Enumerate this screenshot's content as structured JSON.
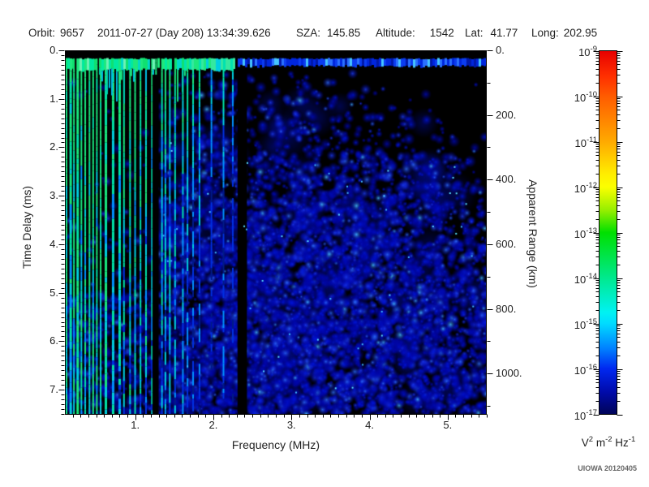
{
  "header": {
    "fields": [
      {
        "label": "Orbit:",
        "value": "9657"
      },
      {
        "label": "",
        "value": "2011-07-27 (Day 208) 13:34:39.626"
      },
      {
        "label": "SZA:",
        "value": "145.85"
      },
      {
        "label": "Altitude:",
        "value": "1542"
      },
      {
        "label": "Lat:",
        "value": "41.77"
      },
      {
        "label": "Long:",
        "value": "202.95"
      }
    ]
  },
  "chart_data": {
    "type": "heatmap",
    "description": "Radar sounder ionogram: received spectral density on a log color scale (1e-17 to 1e-9 V^2 m^-2 Hz^-1) versus sounding frequency (0.1-5.5 MHz, x) and echo time delay (0-7.5 ms, left y) / apparent range (0-1125 km, right y). Bright green vertical plasma-resonance stripes below ~1.8 MHz, a bright horizontal direct-signal band near 0.2-0.4 ms across all frequencies (green below ~2.3 MHz, blue above), diffuse blue noise echoes elsewhere that thin out toward the upper right, and black vertical gaps near 1.25 MHz and 2.37 MHz.",
    "x_axis": {
      "label": "Frequency (MHz)",
      "range_mhz": [
        0.1,
        5.5
      ],
      "major_tick_values": [
        1,
        2,
        3,
        4,
        5
      ],
      "major_tick_labels": [
        "1.",
        "2.",
        "3.",
        "4.",
        "5."
      ],
      "minor_tick_step_mhz": 0.1
    },
    "y_axis_left": {
      "label": "Time Delay (ms)",
      "range_ms": [
        0,
        7.5
      ],
      "major_tick_values": [
        0,
        1,
        2,
        3,
        4,
        5,
        6,
        7
      ],
      "major_tick_labels": [
        "0.",
        "1.",
        "2.",
        "3.",
        "4.",
        "5.",
        "6.",
        "7."
      ],
      "minor_tick_step_ms": 0.1
    },
    "y_axis_right": {
      "label": "Apparent Range (km)",
      "range_km": [
        0,
        1125
      ],
      "major_tick_values": [
        0,
        200,
        400,
        600,
        800,
        1000
      ],
      "major_tick_labels": [
        "0.",
        "200.",
        "400.",
        "600.",
        "800.",
        "1000."
      ],
      "minor_tick_step_km": 100
    },
    "colorbar": {
      "tick_base": "10",
      "tick_exponents": [
        -9,
        -10,
        -11,
        -12,
        -13,
        -14,
        -15,
        -16,
        -17
      ],
      "units_parts": [
        {
          "base": "V",
          "sup": "2"
        },
        {
          "base": "m",
          "sup": "-2"
        },
        {
          "base": "Hz",
          "sup": "-1"
        }
      ],
      "gradient_stops": [
        {
          "pos": 0.0,
          "color": "#e80000"
        },
        {
          "pos": 0.07,
          "color": "#ff3000"
        },
        {
          "pos": 0.125,
          "color": "#ff5c00"
        },
        {
          "pos": 0.25,
          "color": "#ffaa00"
        },
        {
          "pos": 0.34,
          "color": "#ffee00"
        },
        {
          "pos": 0.375,
          "color": "#fbff00"
        },
        {
          "pos": 0.44,
          "color": "#93ee00"
        },
        {
          "pos": 0.5,
          "color": "#00e000"
        },
        {
          "pos": 0.625,
          "color": "#00e98e"
        },
        {
          "pos": 0.72,
          "color": "#00f2f2"
        },
        {
          "pos": 0.75,
          "color": "#00dcff"
        },
        {
          "pos": 0.82,
          "color": "#0080ff"
        },
        {
          "pos": 0.875,
          "color": "#0028f0"
        },
        {
          "pos": 0.94,
          "color": "#000aaa"
        },
        {
          "pos": 1.0,
          "color": "#000458"
        }
      ]
    },
    "spectrogram": {
      "background": "#000000",
      "top_black_band_ms": [
        0,
        0.17
      ],
      "direct_band_ms": [
        0.17,
        0.42
      ],
      "direct_band_bright_max_mhz": 2.3,
      "dense_stripe_region_mhz": [
        0.1,
        1.35
      ],
      "stripe_region_mhz": [
        0.1,
        1.78
      ],
      "sparse_stripe_region_mhz": [
        1.78,
        2.31
      ],
      "dark_gaps_mhz": [
        [
          1.22,
          1.3
        ],
        [
          2.31,
          2.43
        ]
      ],
      "echo_region_mhz": [
        1.3,
        5.5
      ],
      "stripe_palette": [
        "#19e87e",
        "#00e2a8",
        "#00cfe0",
        "#0090ff",
        "#0030e0",
        "#001a88"
      ],
      "echo_palette": [
        "#0009b0",
        "#0016dd",
        "#1b3bf2",
        "#2e6fff",
        "#49c9ff"
      ]
    },
    "credit": "UIOWA 20120405"
  }
}
